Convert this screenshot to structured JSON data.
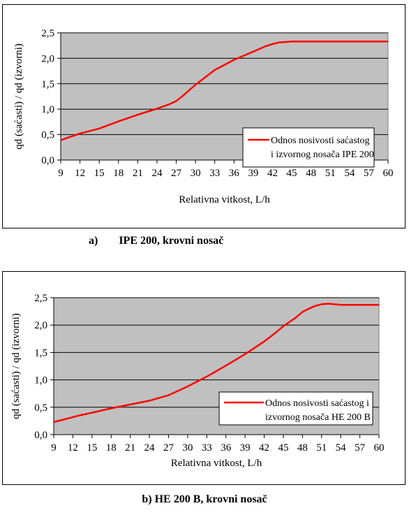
{
  "chart_data": [
    {
      "type": "line",
      "title": "",
      "xlabel": "Relativna vitkost, L/h",
      "ylabel": "qd (saćasti) / qd (izvorni)",
      "x_ticks": [
        "9",
        "12",
        "15",
        "18",
        "21",
        "24",
        "27",
        "30",
        "33",
        "36",
        "39",
        "42",
        "45",
        "48",
        "51",
        "54",
        "57",
        "60"
      ],
      "y_ticks": [
        "0,0",
        "0,5",
        "1,0",
        "1,5",
        "2,0",
        "2,5"
      ],
      "xlim": [
        9,
        60
      ],
      "ylim": [
        0,
        2.5
      ],
      "grid": "horizontal",
      "background_color": "#c0c0c0",
      "legend_position": "right",
      "series": [
        {
          "name": "Odnos nosivosti saćastog i izvornog nosača IPE 200",
          "legend_lines": [
            "Odnos nosivosti saćastog",
            "i izvornog nosača IPE 200"
          ],
          "color": "#ff0000",
          "x": [
            9,
            12,
            15,
            18,
            21,
            24,
            26,
            27,
            28,
            30,
            33,
            36,
            39,
            41,
            42,
            43,
            44,
            45,
            48,
            51,
            54,
            57,
            60
          ],
          "y": [
            0.39,
            0.52,
            0.62,
            0.76,
            0.89,
            1.01,
            1.1,
            1.16,
            1.26,
            1.48,
            1.77,
            1.97,
            2.13,
            2.24,
            2.28,
            2.31,
            2.32,
            2.33,
            2.33,
            2.33,
            2.33,
            2.33,
            2.33
          ]
        }
      ],
      "caption_letter": "a)",
      "caption_text": "IPE 200, krovni nosač"
    },
    {
      "type": "line",
      "title": "",
      "xlabel": "Relativna vitkost, L/h",
      "ylabel": "qd (saćasti) / qd (izvorni)",
      "x_ticks": [
        "9",
        "12",
        "15",
        "18",
        "21",
        "24",
        "27",
        "30",
        "33",
        "36",
        "39",
        "42",
        "45",
        "48",
        "51",
        "54",
        "57",
        "60"
      ],
      "y_ticks": [
        "0,0",
        "0,5",
        "1,0",
        "1,5",
        "2,0",
        "2,5"
      ],
      "xlim": [
        9,
        60
      ],
      "ylim": [
        0,
        2.5
      ],
      "grid": "horizontal",
      "background_color": "#c0c0c0",
      "legend_position": "right",
      "series": [
        {
          "name": "Odnos nosivosti saćastog i izvornog nosača HE 200 B",
          "legend_lines": [
            "Odnos nosivosti saćastog i",
            "izvornog nosača HE 200 B"
          ],
          "color": "#ff0000",
          "x": [
            9,
            11,
            13,
            15,
            18,
            21,
            24,
            27,
            30,
            33,
            36,
            39,
            42,
            44,
            45,
            46,
            47,
            48,
            49,
            50,
            51,
            52,
            53,
            54,
            57,
            60
          ],
          "y": [
            0.23,
            0.29,
            0.35,
            0.4,
            0.48,
            0.55,
            0.62,
            0.72,
            0.88,
            1.06,
            1.26,
            1.47,
            1.7,
            1.88,
            1.98,
            2.06,
            2.14,
            2.24,
            2.3,
            2.35,
            2.38,
            2.39,
            2.38,
            2.37,
            2.37,
            2.37
          ]
        }
      ],
      "caption_text": "b) HE 200 B, krovni nosač"
    }
  ]
}
